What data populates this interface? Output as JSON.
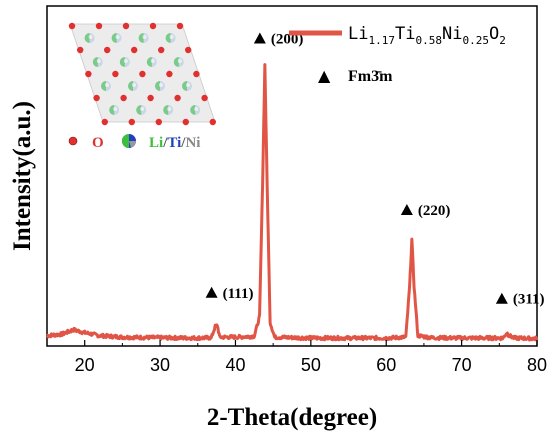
{
  "chart_data": {
    "type": "line",
    "xlabel": "2-Theta(degree)",
    "ylabel": "Intensity(a.u.)",
    "xlim": [
      15,
      80
    ],
    "x_ticks": [
      20,
      30,
      40,
      50,
      60,
      70,
      80
    ],
    "y_ticks_shown": false,
    "grid": false,
    "legend_position": "top-right",
    "series": [
      {
        "name": "Li1.17Ti0.58Ni0.25O2",
        "color": "#e05545",
        "points": [
          [
            15,
            0.035
          ],
          [
            17,
            0.04
          ],
          [
            18.5,
            0.055
          ],
          [
            20,
            0.045
          ],
          [
            22,
            0.035
          ],
          [
            25,
            0.03
          ],
          [
            30,
            0.028
          ],
          [
            35,
            0.027
          ],
          [
            36.8,
            0.028
          ],
          [
            37.3,
            0.065
          ],
          [
            37.6,
            0.07
          ],
          [
            37.9,
            0.03
          ],
          [
            40,
            0.03
          ],
          [
            42.5,
            0.033
          ],
          [
            43.2,
            0.1
          ],
          [
            43.6,
            0.55
          ],
          [
            43.9,
            0.95
          ],
          [
            44.2,
            0.55
          ],
          [
            44.6,
            0.08
          ],
          [
            45.2,
            0.03
          ],
          [
            50,
            0.027
          ],
          [
            55,
            0.027
          ],
          [
            60,
            0.027
          ],
          [
            62.6,
            0.03
          ],
          [
            63.1,
            0.2
          ],
          [
            63.4,
            0.36
          ],
          [
            63.7,
            0.2
          ],
          [
            64.2,
            0.035
          ],
          [
            66,
            0.028
          ],
          [
            70,
            0.027
          ],
          [
            75.5,
            0.027
          ],
          [
            76.0,
            0.045
          ],
          [
            76.3,
            0.035
          ],
          [
            77,
            0.027
          ],
          [
            80,
            0.025
          ]
        ]
      }
    ],
    "peak_markers": [
      {
        "label": "(111)",
        "x": 37.5,
        "y": 0.18
      },
      {
        "label": "(200)",
        "x": 43.9,
        "y": 1.04
      },
      {
        "label": "(220)",
        "x": 63.4,
        "y": 0.46
      },
      {
        "label": "(311)",
        "x": 76.0,
        "y": 0.16
      }
    ],
    "ylim": [
      0,
      1.15
    ]
  },
  "legend": {
    "formula": {
      "parts": [
        "Li",
        "1.17",
        "Ti",
        "0.58",
        "Ni",
        "0.25",
        "O",
        "2"
      ]
    },
    "phase_symbol": "▲",
    "phase_name": "Fm3̄m"
  },
  "inset": {
    "legend_o": "O",
    "legend_li": "Li",
    "legend_slash1": "/",
    "legend_ti": "Ti",
    "legend_slash2": "/",
    "legend_ni": "Ni",
    "colors": {
      "o": "#e03030",
      "li": "#3cbf3c",
      "ti": "#2040c0",
      "ni": "#999999"
    }
  }
}
